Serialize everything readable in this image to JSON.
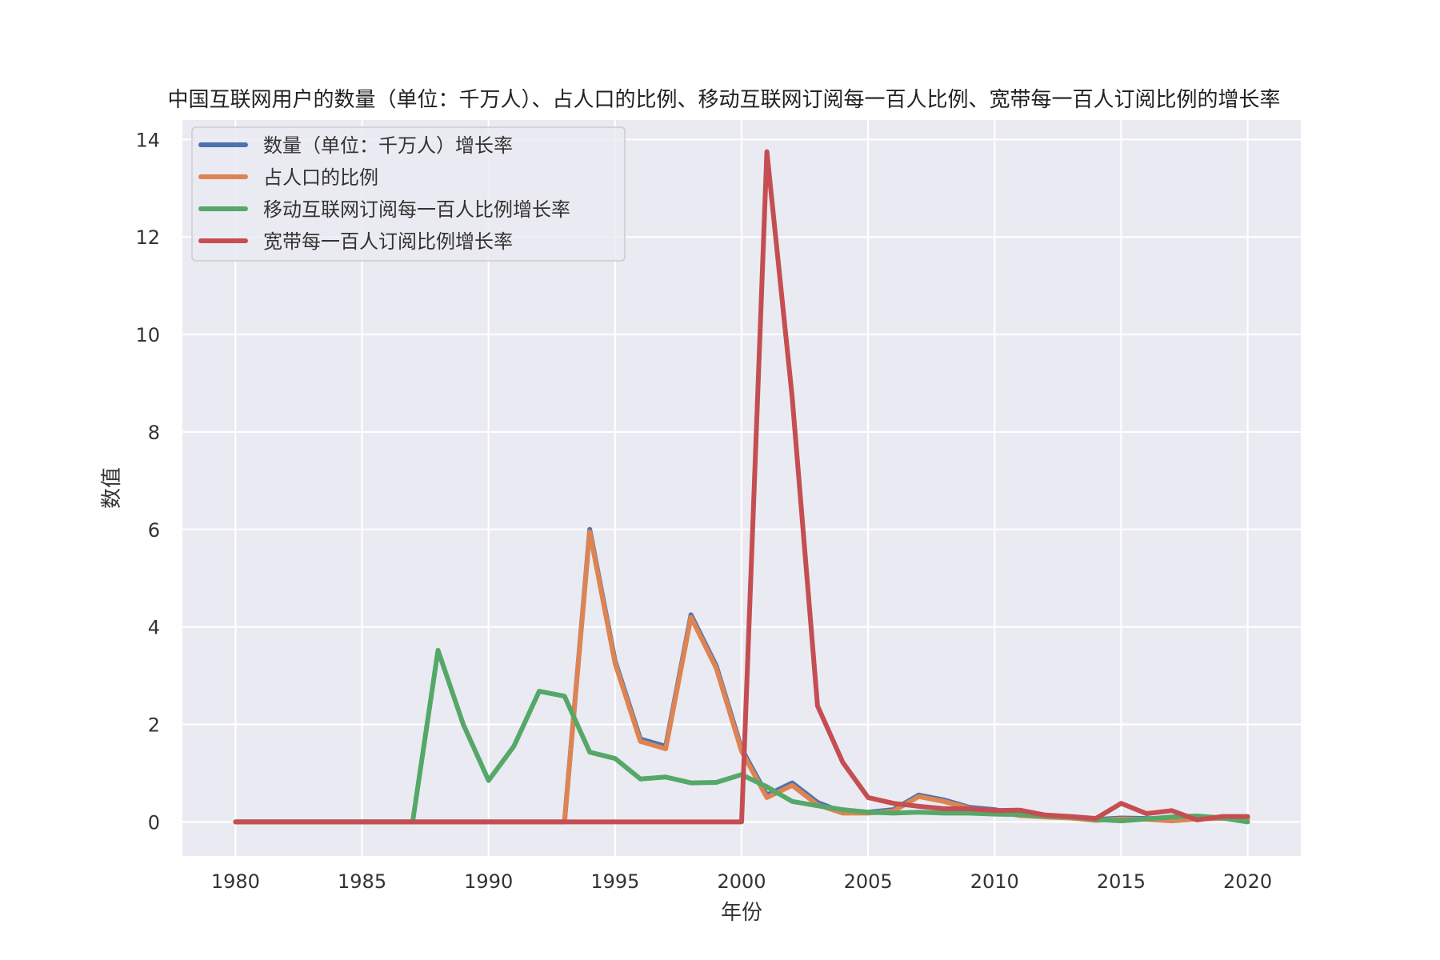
{
  "chart_data": {
    "type": "line",
    "title": "中国互联网用户的数量（单位：千万人）、占人口的比例、移动互联网订阅每一百人比例、宽带每一百人订阅比例的增长率",
    "xlabel": "年份",
    "ylabel": "数值",
    "x": [
      1980,
      1981,
      1982,
      1983,
      1984,
      1985,
      1986,
      1987,
      1988,
      1989,
      1990,
      1991,
      1992,
      1993,
      1994,
      1995,
      1996,
      1997,
      1998,
      1999,
      2000,
      2001,
      2002,
      2003,
      2004,
      2005,
      2006,
      2007,
      2008,
      2009,
      2010,
      2011,
      2012,
      2013,
      2014,
      2015,
      2016,
      2017,
      2018,
      2019,
      2020
    ],
    "xticks": [
      1980,
      1985,
      1990,
      1995,
      2000,
      2005,
      2010,
      2015,
      2020
    ],
    "xtick_labels": [
      "1980",
      "1985",
      "1990",
      "1995",
      "2000",
      "2005",
      "2010",
      "2015",
      "2020"
    ],
    "yticks": [
      0,
      2,
      4,
      6,
      8,
      10,
      12,
      14
    ],
    "ytick_labels": [
      "0",
      "2",
      "4",
      "6",
      "8",
      "10",
      "12",
      "14"
    ],
    "xlim": [
      1977.9,
      2022.1
    ],
    "ylim": [
      -0.7,
      14.4
    ],
    "grid": true,
    "legend_position": "top-left",
    "background": "#eaeaf2",
    "series": [
      {
        "name": "数量（单位：千万人）增长率",
        "color": "#4c72b0",
        "values": [
          0,
          0,
          0,
          0,
          0,
          0,
          0,
          0,
          0,
          0,
          0,
          0,
          0,
          0,
          6.0,
          3.3,
          1.7,
          1.55,
          4.25,
          3.2,
          1.5,
          0.55,
          0.8,
          0.4,
          0.2,
          0.2,
          0.25,
          0.55,
          0.45,
          0.3,
          0.25,
          0.15,
          0.12,
          0.1,
          0.05,
          0.08,
          0.07,
          0.06,
          0.08,
          0.08,
          0.08
        ]
      },
      {
        "name": "占人口的比例",
        "color": "#dd8452",
        "values": [
          0,
          0,
          0,
          0,
          0,
          0,
          0,
          0,
          0,
          0,
          0,
          0,
          0,
          0,
          5.95,
          3.25,
          1.65,
          1.5,
          4.2,
          3.15,
          1.45,
          0.5,
          0.75,
          0.35,
          0.18,
          0.18,
          0.22,
          0.52,
          0.42,
          0.28,
          0.22,
          0.13,
          0.1,
          0.08,
          0.03,
          0.06,
          0.05,
          0.02,
          0.06,
          0.07,
          0.07
        ]
      },
      {
        "name": "移动互联网订阅每一百人比例增长率",
        "color": "#55a868",
        "values": [
          0,
          0,
          0,
          0,
          0,
          0,
          0,
          0,
          3.52,
          2.0,
          0.85,
          1.55,
          2.68,
          2.58,
          1.43,
          1.3,
          0.88,
          0.92,
          0.8,
          0.81,
          0.97,
          0.72,
          0.42,
          0.33,
          0.25,
          0.2,
          0.18,
          0.2,
          0.18,
          0.18,
          0.16,
          0.15,
          0.12,
          0.1,
          0.05,
          0.02,
          0.06,
          0.1,
          0.12,
          0.08,
          0.0
        ]
      },
      {
        "name": "宽带每一百人订阅比例增长率",
        "color": "#c44e52",
        "values": [
          0,
          0,
          0,
          0,
          0,
          0,
          0,
          0,
          0,
          0,
          0,
          0,
          0,
          0,
          0,
          0,
          0,
          0,
          0,
          0,
          0,
          13.75,
          8.7,
          2.38,
          1.22,
          0.5,
          0.38,
          0.32,
          0.27,
          0.27,
          0.23,
          0.24,
          0.14,
          0.11,
          0.07,
          0.38,
          0.17,
          0.23,
          0.04,
          0.11,
          0.11
        ]
      }
    ]
  }
}
